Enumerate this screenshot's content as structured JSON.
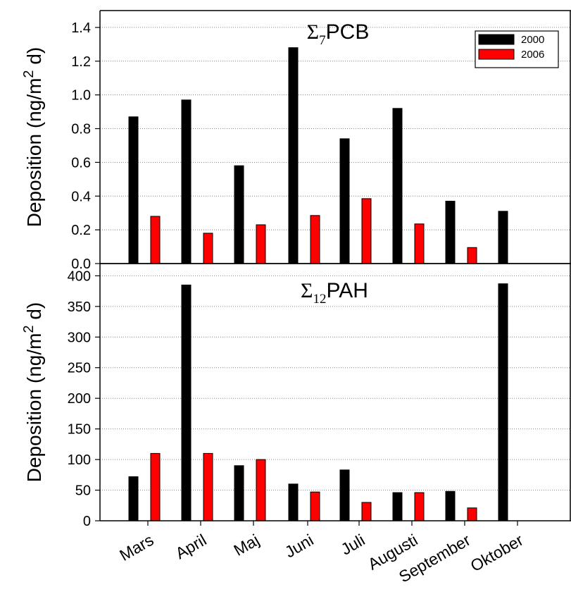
{
  "chart_data": [
    {
      "type": "bar",
      "title_symbol": "Σ",
      "title_sub": "7",
      "title_main": "PCB",
      "ylabel": "Deposition (ng/m",
      "ylabel_sup": "2",
      "ylabel_tail": " d)",
      "ylim": [
        0,
        1.5
      ],
      "yticks": [
        "0.0",
        "0.2",
        "0.4",
        "0.6",
        "0.8",
        "1.0",
        "1.2",
        "1.4"
      ],
      "ytick_values": [
        0,
        0.2,
        0.4,
        0.6,
        0.8,
        1.0,
        1.2,
        1.4
      ],
      "grid": true,
      "legend_position": "top-right",
      "categories": [
        "Mars",
        "April",
        "Maj",
        "Juni",
        "Juli",
        "Augusti",
        "September",
        "Oktober"
      ],
      "series": [
        {
          "name": "2000",
          "color": "#000000",
          "values": [
            0.87,
            0.97,
            0.58,
            1.28,
            0.74,
            0.92,
            0.37,
            0.31
          ]
        },
        {
          "name": "2006",
          "color": "#ff0000",
          "values": [
            0.28,
            0.18,
            0.23,
            0.285,
            0.385,
            0.235,
            0.095,
            null
          ]
        }
      ]
    },
    {
      "type": "bar",
      "title_symbol": "Σ",
      "title_sub": "12",
      "title_main": "PAH",
      "ylabel": "Deposition (ng/m",
      "ylabel_sup": "2",
      "ylabel_tail": " d)",
      "ylim": [
        0,
        420
      ],
      "yticks": [
        "0",
        "50",
        "100",
        "150",
        "200",
        "250",
        "300",
        "350",
        "400"
      ],
      "ytick_values": [
        0,
        50,
        100,
        150,
        200,
        250,
        300,
        350,
        400
      ],
      "grid": true,
      "categories": [
        "Mars",
        "April",
        "Maj",
        "Juni",
        "Juli",
        "Augusti",
        "September",
        "Oktober"
      ],
      "series": [
        {
          "name": "2000",
          "color": "#000000",
          "values": [
            72,
            385,
            90,
            60,
            83,
            46,
            48,
            387
          ]
        },
        {
          "name": "2006",
          "color": "#ff0000",
          "values": [
            110,
            110,
            100,
            47,
            30,
            46,
            21,
            null
          ]
        }
      ]
    }
  ]
}
